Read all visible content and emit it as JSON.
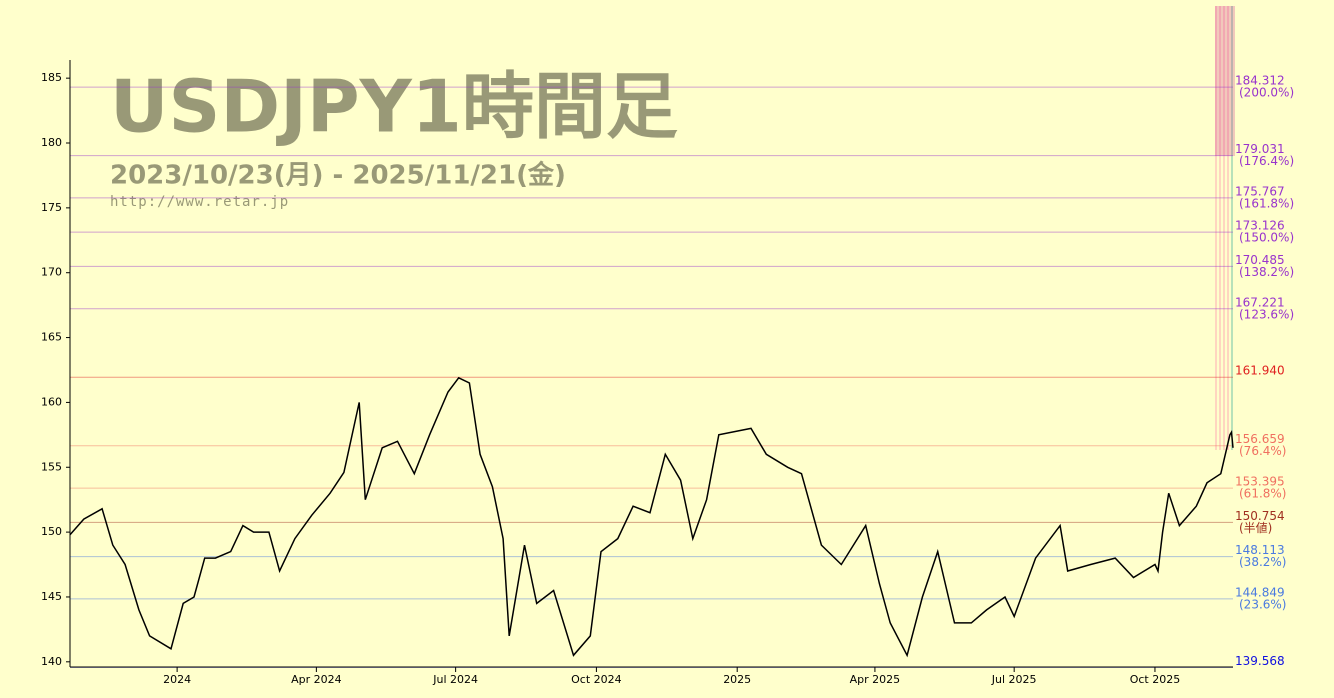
{
  "chart_data": {
    "type": "line",
    "title": "USDJPY1時間足",
    "subtitle": "2023/10/23(月) - 2025/11/21(金)",
    "url": "http://www.retar.jp",
    "color": "#000000",
    "x": [
      "2023-10-23",
      "2023-11-01",
      "2023-11-13",
      "2023-11-20",
      "2023-11-28",
      "2023-12-07",
      "2023-12-14",
      "2023-12-28",
      "2024-01-05",
      "2024-01-12",
      "2024-01-19",
      "2024-01-26",
      "2024-02-05",
      "2024-02-13",
      "2024-02-20",
      "2024-03-01",
      "2024-03-08",
      "2024-03-18",
      "2024-03-29",
      "2024-04-10",
      "2024-04-19",
      "2024-04-29",
      "2024-05-03",
      "2024-05-14",
      "2024-05-24",
      "2024-06-04",
      "2024-06-14",
      "2024-06-26",
      "2024-07-03",
      "2024-07-10",
      "2024-07-17",
      "2024-07-25",
      "2024-08-01",
      "2024-08-05",
      "2024-08-15",
      "2024-08-23",
      "2024-09-03",
      "2024-09-16",
      "2024-09-27",
      "2024-10-04",
      "2024-10-15",
      "2024-10-25",
      "2024-11-05",
      "2024-11-15",
      "2024-11-25",
      "2024-12-03",
      "2024-12-12",
      "2024-12-20",
      "2025-01-10",
      "2025-01-20",
      "2025-02-03",
      "2025-02-12",
      "2025-02-25",
      "2025-03-10",
      "2025-03-26",
      "2025-04-04",
      "2025-04-11",
      "2025-04-22",
      "2025-05-02",
      "2025-05-12",
      "2025-05-23",
      "2025-06-03",
      "2025-06-13",
      "2025-06-25",
      "2025-07-01",
      "2025-07-15",
      "2025-07-31",
      "2025-08-05",
      "2025-08-20",
      "2025-09-05",
      "2025-09-17",
      "2025-10-01",
      "2025-10-03",
      "2025-10-06",
      "2025-10-10",
      "2025-10-17",
      "2025-10-28",
      "2025-11-04",
      "2025-11-13",
      "2025-11-19",
      "2025-11-20",
      "2025-11-21"
    ],
    "values": [
      149.8,
      151.0,
      151.8,
      149.0,
      147.5,
      144.0,
      142.0,
      141.0,
      144.5,
      145.0,
      148.0,
      148.0,
      148.5,
      150.5,
      150.0,
      150.0,
      147.0,
      149.5,
      151.3,
      153.0,
      154.6,
      160.0,
      152.5,
      156.5,
      157.0,
      154.5,
      157.5,
      160.8,
      161.9,
      161.5,
      156.0,
      153.5,
      149.5,
      142.0,
      149.0,
      144.5,
      145.5,
      140.5,
      142.0,
      148.5,
      149.5,
      152.0,
      151.5,
      156.0,
      154.0,
      149.5,
      152.5,
      157.5,
      158.0,
      156.0,
      155.0,
      154.5,
      149.0,
      147.5,
      150.5,
      146.0,
      143.0,
      140.5,
      145.0,
      148.5,
      143.0,
      143.0,
      144.0,
      145.0,
      143.5,
      148.0,
      150.5,
      147.0,
      147.5,
      148.0,
      146.5,
      147.5,
      147.0,
      150.0,
      153.0,
      150.5,
      152.0,
      153.8,
      154.5,
      157.5,
      157.7,
      156.5
    ],
    "xlim": [
      "2023-10-23",
      "2025-11-21"
    ],
    "xticks": [
      {
        "value": "2024-01-01",
        "label": "2024"
      },
      {
        "value": "2024-04-01",
        "label": "Apr 2024"
      },
      {
        "value": "2024-07-01",
        "label": "Jul 2024"
      },
      {
        "value": "2024-10-01",
        "label": "Oct 2024"
      },
      {
        "value": "2025-01-01",
        "label": "2025"
      },
      {
        "value": "2025-04-01",
        "label": "Apr 2025"
      },
      {
        "value": "2025-07-01",
        "label": "Jul 2025"
      },
      {
        "value": "2025-10-01",
        "label": "Oct 2025"
      }
    ],
    "ylim": [
      139.6,
      186.4
    ],
    "yticks": [
      140,
      145,
      150,
      155,
      160,
      165,
      170,
      175,
      180,
      185
    ],
    "levels": [
      {
        "value": 184.312,
        "label": "184.312",
        "note": "(200.0%)",
        "color": "#9933cc"
      },
      {
        "value": 179.031,
        "label": "179.031",
        "note": "(176.4%)",
        "color": "#9933cc"
      },
      {
        "value": 175.767,
        "label": "175.767",
        "note": "(161.8%)",
        "color": "#9933cc"
      },
      {
        "value": 173.126,
        "label": "173.126",
        "note": "(150.0%)",
        "color": "#9933cc"
      },
      {
        "value": 170.485,
        "label": "170.485",
        "note": "(138.2%)",
        "color": "#9933cc"
      },
      {
        "value": 167.221,
        "label": "167.221",
        "note": "(123.6%)",
        "color": "#9933cc"
      },
      {
        "value": 161.94,
        "label": "161.940",
        "color": "#e02020"
      },
      {
        "value": 156.659,
        "label": "156.659",
        "note": "(76.4%)",
        "color": "#f07060"
      },
      {
        "value": 153.395,
        "label": "153.395",
        "note": "(61.8%)",
        "color": "#f07060"
      },
      {
        "value": 150.754,
        "label": "150.754",
        "note": "(半値)",
        "color": "#a03020"
      },
      {
        "value": 148.113,
        "label": "148.113",
        "note": "(38.2%)",
        "color": "#4a7ae0"
      },
      {
        "value": 144.849,
        "label": "144.849",
        "note": "(23.6%)",
        "color": "#4a7ae0"
      },
      {
        "value": 139.568,
        "label": "139.568",
        "color": "#1010e0"
      }
    ]
  }
}
